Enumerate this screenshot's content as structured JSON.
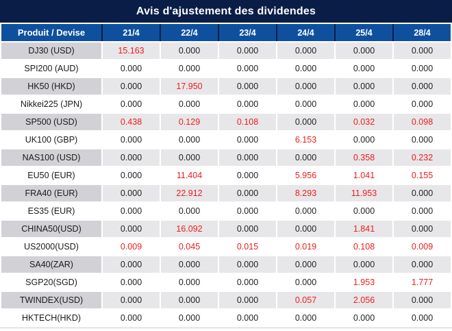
{
  "title": "Avis d'ajustement des dividendes",
  "colors": {
    "title_bg": "#0a1d47",
    "header_bg": "#0f509e",
    "header_text": "#ffffff",
    "row_gray": "#e7e7e9",
    "product_gray": "#d2d2d6",
    "row_white": "#ffffff",
    "value_red": "#ee1c1d",
    "text_dark": "#212121",
    "bottom_line": "#c9c9c9"
  },
  "table": {
    "product_header": "Produit / Devise",
    "date_headers": [
      "21/4",
      "22/4",
      "23/4",
      "24/4",
      "25/4",
      "28/4"
    ],
    "rows": [
      {
        "product": "DJ30 (USD)",
        "values": [
          "15.163",
          "0.000",
          "0.000",
          "0.000",
          "0.000",
          "0.000"
        ],
        "red": [
          true,
          false,
          false,
          false,
          false,
          false
        ]
      },
      {
        "product": "SPI200 (AUD)",
        "values": [
          "0.000",
          "0.000",
          "0.000",
          "0.000",
          "0.000",
          "0.000"
        ],
        "red": [
          false,
          false,
          false,
          false,
          false,
          false
        ]
      },
      {
        "product": "HK50 (HKD)",
        "values": [
          "0.000",
          "17.950",
          "0.000",
          "0.000",
          "0.000",
          "0.000"
        ],
        "red": [
          false,
          true,
          false,
          false,
          false,
          false
        ]
      },
      {
        "product": "Nikkei225 (JPN)",
        "values": [
          "0.000",
          "0.000",
          "0.000",
          "0.000",
          "0.000",
          "0.000"
        ],
        "red": [
          false,
          false,
          false,
          false,
          false,
          false
        ]
      },
      {
        "product": "SP500 (USD)",
        "values": [
          "0.438",
          "0.129",
          "0.108",
          "0.000",
          "0.032",
          "0.098"
        ],
        "red": [
          true,
          true,
          true,
          false,
          true,
          true
        ]
      },
      {
        "product": "UK100 (GBP)",
        "values": [
          "0.000",
          "0.000",
          "0.000",
          "6.153",
          "0.000",
          "0.000"
        ],
        "red": [
          false,
          false,
          false,
          true,
          false,
          false
        ]
      },
      {
        "product": "NAS100 (USD)",
        "values": [
          "0.000",
          "0.000",
          "0.000",
          "0.000",
          "0.358",
          "0.232"
        ],
        "red": [
          false,
          false,
          false,
          false,
          true,
          true
        ]
      },
      {
        "product": "EU50 (EUR)",
        "values": [
          "0.000",
          "11.404",
          "0.000",
          "5.956",
          "1.041",
          "0.155"
        ],
        "red": [
          false,
          true,
          false,
          true,
          true,
          true
        ]
      },
      {
        "product": "FRA40 (EUR)",
        "values": [
          "0.000",
          "22.912",
          "0.000",
          "8.293",
          "11.953",
          "0.000"
        ],
        "red": [
          false,
          true,
          false,
          true,
          true,
          false
        ]
      },
      {
        "product": "ES35 (EUR)",
        "values": [
          "0.000",
          "0.000",
          "0.000",
          "0.000",
          "0.000",
          "0.000"
        ],
        "red": [
          false,
          false,
          false,
          false,
          false,
          false
        ]
      },
      {
        "product": "CHINA50(USD)",
        "values": [
          "0.000",
          "16.092",
          "0.000",
          "0.000",
          "1.841",
          "0.000"
        ],
        "red": [
          false,
          true,
          false,
          false,
          true,
          false
        ]
      },
      {
        "product": "US2000(USD)",
        "values": [
          "0.009",
          "0.045",
          "0.015",
          "0.019",
          "0.108",
          "0.009"
        ],
        "red": [
          true,
          true,
          true,
          true,
          true,
          true
        ]
      },
      {
        "product": "SA40(ZAR)",
        "values": [
          "0.000",
          "0.000",
          "0.000",
          "0.000",
          "0.000",
          "0.000"
        ],
        "red": [
          false,
          false,
          false,
          false,
          false,
          false
        ]
      },
      {
        "product": "SGP20(SGD)",
        "values": [
          "0.000",
          "0.000",
          "0.000",
          "0.000",
          "1.953",
          "1.777"
        ],
        "red": [
          false,
          false,
          false,
          false,
          true,
          true
        ]
      },
      {
        "product": "TWINDEX(USD)",
        "values": [
          "0.000",
          "0.000",
          "0.000",
          "0.057",
          "2.056",
          "0.000"
        ],
        "red": [
          false,
          false,
          false,
          true,
          true,
          false
        ]
      },
      {
        "product": "HKTECH(HKD)",
        "values": [
          "0.000",
          "0.000",
          "0.000",
          "0.000",
          "0.000",
          "0.000"
        ],
        "red": [
          false,
          false,
          false,
          false,
          false,
          false
        ]
      }
    ]
  }
}
